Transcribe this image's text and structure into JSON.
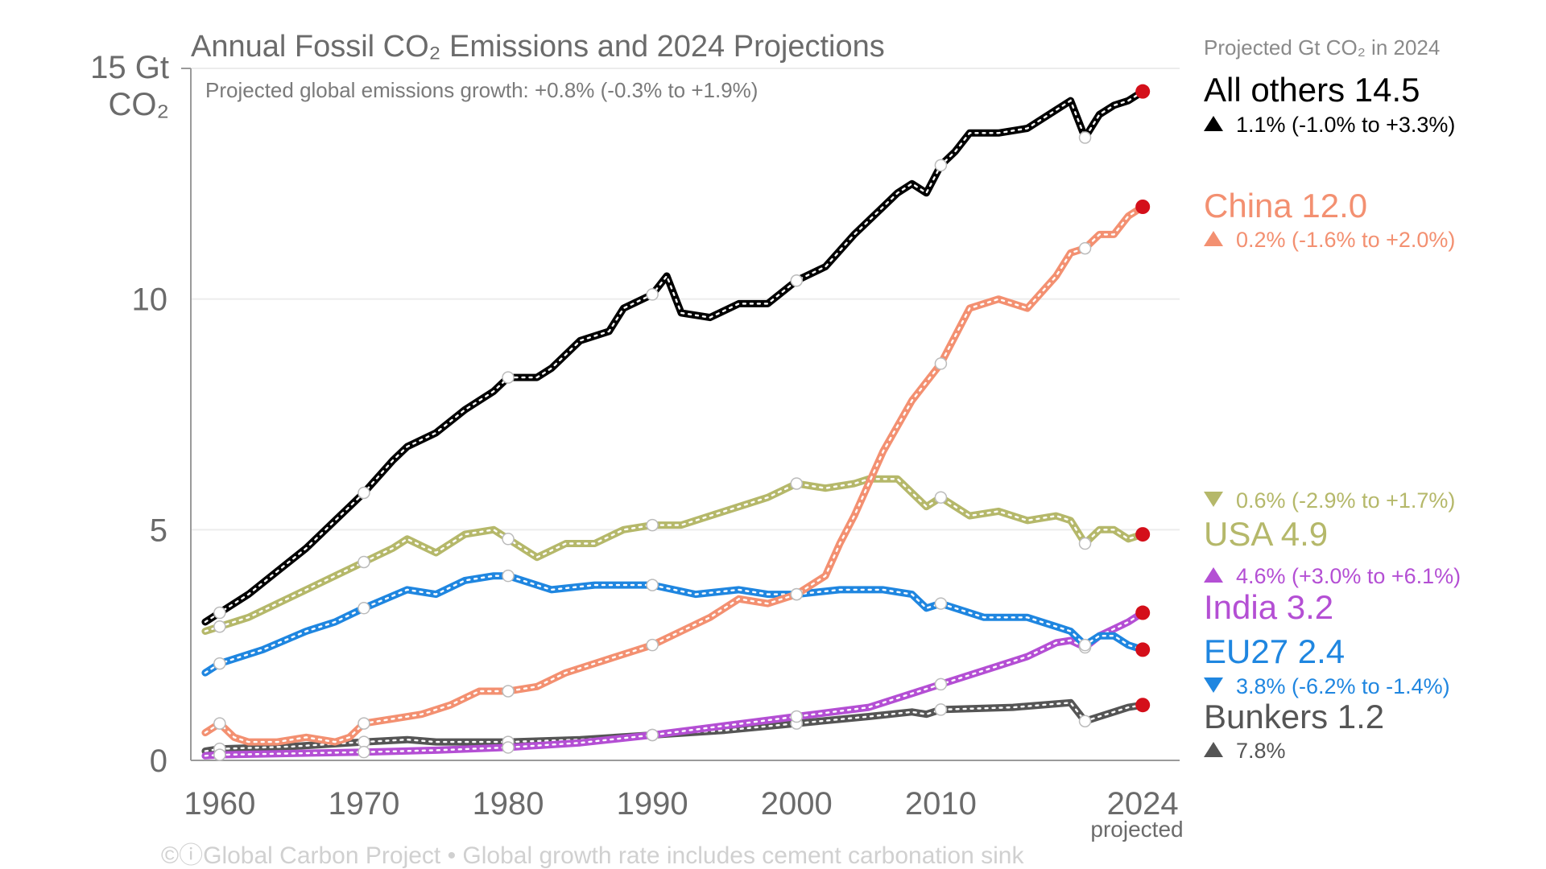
{
  "chart_data": {
    "type": "line",
    "title": "Annual Fossil CO₂ Emissions and 2024 Projections",
    "subtitle": "Projected global emissions growth: +0.8% (-0.3% to +1.9%)",
    "ylabel_line1": "15 Gt",
    "ylabel_line2": "CO₂",
    "ylim": [
      0,
      15
    ],
    "xlim": [
      1958,
      2026
    ],
    "yticks": [
      0,
      5,
      10
    ],
    "ytick_labels": [
      "0",
      "5",
      "10"
    ],
    "xticks": [
      1960,
      1970,
      1980,
      1990,
      2000,
      2010,
      2024
    ],
    "xtick_labels": [
      "1960",
      "1970",
      "1980",
      "1990",
      "2000",
      "2010",
      "2024"
    ],
    "projected_label": "projected",
    "legend_header": "Projected Gt CO₂ in 2024",
    "grid": true,
    "footer": "©ⓘGlobal Carbon Project  •  Global growth rate includes cement carbonation sink",
    "series": [
      {
        "name": "All others",
        "value_label": "14.5",
        "growth_label": "1.1% (-1.0% to +3.3%)",
        "trend": "up",
        "color": "#000000",
        "x": [
          1959,
          1960,
          1962,
          1964,
          1966,
          1968,
          1969,
          1970,
          1972,
          1973,
          1975,
          1977,
          1979,
          1980,
          1982,
          1983,
          1984,
          1985,
          1987,
          1988,
          1990,
          1991,
          1992,
          1994,
          1996,
          1998,
          2000,
          2002,
          2004,
          2006,
          2007,
          2008,
          2009,
          2010,
          2011,
          2012,
          2014,
          2016,
          2018,
          2019,
          2020,
          2021,
          2022,
          2023,
          2024
        ],
        "y": [
          3.0,
          3.2,
          3.6,
          4.1,
          4.6,
          5.2,
          5.5,
          5.8,
          6.5,
          6.8,
          7.1,
          7.6,
          8.0,
          8.3,
          8.3,
          8.5,
          8.8,
          9.1,
          9.3,
          9.8,
          10.1,
          10.5,
          9.7,
          9.6,
          9.9,
          9.9,
          10.4,
          10.7,
          11.4,
          12.0,
          12.3,
          12.5,
          12.3,
          12.9,
          13.2,
          13.6,
          13.6,
          13.7,
          14.1,
          14.3,
          13.5,
          14.0,
          14.2,
          14.3,
          14.5
        ],
        "circles": [
          1960,
          1970,
          1980,
          1990,
          2000,
          2010,
          2020
        ]
      },
      {
        "name": "China",
        "value_label": "12.0",
        "growth_label": "0.2% (-1.6% to +2.0%)",
        "trend": "up",
        "color": "#f39071",
        "x": [
          1959,
          1960,
          1961,
          1962,
          1964,
          1966,
          1968,
          1969,
          1970,
          1972,
          1974,
          1976,
          1978,
          1980,
          1982,
          1984,
          1986,
          1988,
          1990,
          1992,
          1994,
          1996,
          1998,
          2000,
          2002,
          2003,
          2004,
          2006,
          2008,
          2010,
          2012,
          2014,
          2016,
          2018,
          2019,
          2020,
          2021,
          2022,
          2023,
          2024
        ],
        "y": [
          0.6,
          0.8,
          0.5,
          0.4,
          0.4,
          0.5,
          0.4,
          0.5,
          0.8,
          0.9,
          1.0,
          1.2,
          1.5,
          1.5,
          1.6,
          1.9,
          2.1,
          2.3,
          2.5,
          2.8,
          3.1,
          3.5,
          3.4,
          3.6,
          4.0,
          4.7,
          5.3,
          6.7,
          7.8,
          8.6,
          9.8,
          10.0,
          9.8,
          10.5,
          11.0,
          11.1,
          11.4,
          11.4,
          11.8,
          12.0
        ],
        "circles": [
          1960,
          1970,
          1980,
          1990,
          2000,
          2010,
          2020
        ]
      },
      {
        "name": "USA",
        "value_label": "4.9",
        "growth_label": "0.6% (-2.9% to +1.7%)",
        "trend": "down",
        "color": "#b5b86a",
        "x": [
          1959,
          1960,
          1962,
          1964,
          1966,
          1968,
          1970,
          1972,
          1973,
          1975,
          1977,
          1979,
          1980,
          1982,
          1984,
          1986,
          1988,
          1990,
          1992,
          1994,
          1996,
          1998,
          2000,
          2002,
          2004,
          2005,
          2007,
          2009,
          2010,
          2012,
          2014,
          2016,
          2018,
          2019,
          2020,
          2021,
          2022,
          2023,
          2024
        ],
        "y": [
          2.8,
          2.9,
          3.1,
          3.4,
          3.7,
          4.0,
          4.3,
          4.6,
          4.8,
          4.5,
          4.9,
          5.0,
          4.8,
          4.4,
          4.7,
          4.7,
          5.0,
          5.1,
          5.1,
          5.3,
          5.5,
          5.7,
          6.0,
          5.9,
          6.0,
          6.1,
          6.1,
          5.5,
          5.7,
          5.3,
          5.4,
          5.2,
          5.3,
          5.2,
          4.7,
          5.0,
          5.0,
          4.8,
          4.9
        ],
        "circles": [
          1960,
          1970,
          1980,
          1990,
          2000,
          2010,
          2020
        ]
      },
      {
        "name": "India",
        "value_label": "3.2",
        "growth_label": "4.6% (+3.0% to +6.1%)",
        "trend": "up",
        "color": "#b44fd4",
        "x": [
          1959,
          1960,
          1965,
          1970,
          1975,
          1980,
          1985,
          1990,
          1995,
          2000,
          2005,
          2010,
          2014,
          2016,
          2018,
          2019,
          2020,
          2021,
          2022,
          2023,
          2024
        ],
        "y": [
          0.1,
          0.12,
          0.15,
          0.18,
          0.22,
          0.28,
          0.38,
          0.55,
          0.75,
          0.95,
          1.15,
          1.65,
          2.05,
          2.25,
          2.55,
          2.6,
          2.45,
          2.7,
          2.85,
          3.0,
          3.2
        ],
        "circles": [
          1960,
          1970,
          1980,
          1990,
          2000,
          2010,
          2020
        ]
      },
      {
        "name": "EU27",
        "value_label": "2.4",
        "growth_label": "3.8% (-6.2% to -1.4%)",
        "trend": "down",
        "color": "#1f86e0",
        "x": [
          1959,
          1960,
          1963,
          1966,
          1968,
          1970,
          1973,
          1975,
          1977,
          1979,
          1980,
          1983,
          1986,
          1990,
          1993,
          1996,
          1998,
          2000,
          2003,
          2006,
          2008,
          2009,
          2010,
          2013,
          2016,
          2018,
          2019,
          2020,
          2021,
          2022,
          2023,
          2024
        ],
        "y": [
          1.9,
          2.1,
          2.4,
          2.8,
          3.0,
          3.3,
          3.7,
          3.6,
          3.9,
          4.0,
          4.0,
          3.7,
          3.8,
          3.8,
          3.6,
          3.7,
          3.6,
          3.6,
          3.7,
          3.7,
          3.6,
          3.3,
          3.4,
          3.1,
          3.1,
          2.9,
          2.8,
          2.5,
          2.7,
          2.7,
          2.5,
          2.4
        ],
        "circles": [
          1960,
          1970,
          1980,
          1990,
          2000,
          2010,
          2020
        ]
      },
      {
        "name": "Bunkers",
        "value_label": "1.2",
        "growth_label": "7.8%",
        "trend": "up",
        "color": "#555555",
        "x": [
          1959,
          1960,
          1965,
          1970,
          1973,
          1975,
          1980,
          1985,
          1990,
          1995,
          2000,
          2005,
          2008,
          2009,
          2010,
          2015,
          2019,
          2020,
          2021,
          2022,
          2023,
          2024
        ],
        "y": [
          0.2,
          0.25,
          0.3,
          0.4,
          0.45,
          0.4,
          0.4,
          0.45,
          0.55,
          0.65,
          0.8,
          0.95,
          1.05,
          1.0,
          1.1,
          1.15,
          1.25,
          0.85,
          0.95,
          1.05,
          1.15,
          1.2
        ],
        "circles": [
          1960,
          1970,
          1980,
          1990,
          2000,
          2010,
          2020
        ]
      }
    ]
  }
}
